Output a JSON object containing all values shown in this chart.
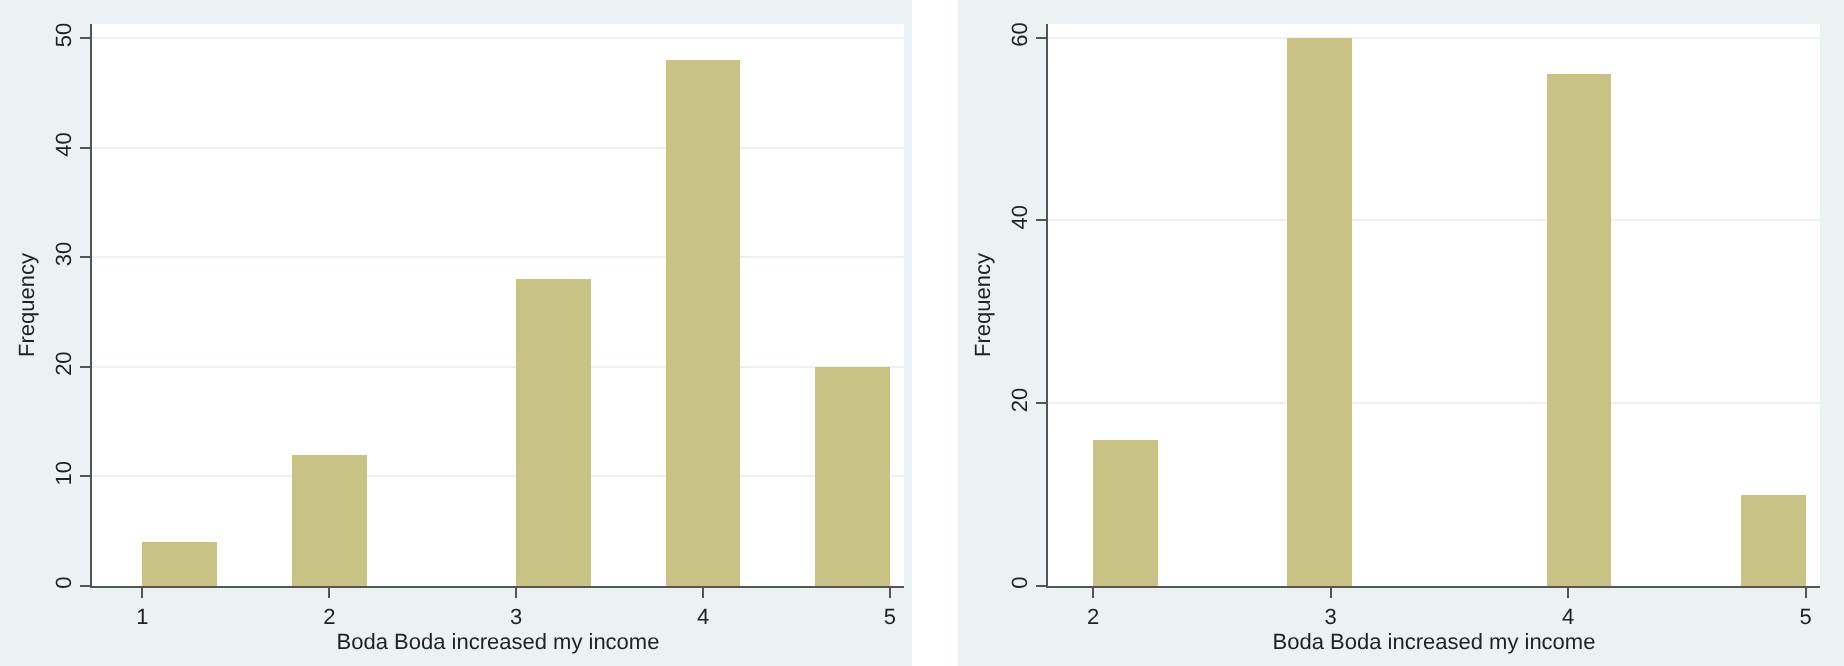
{
  "chart_data": [
    {
      "type": "histogram",
      "xlabel": "Boda Boda increased my income",
      "ylabel": "Frequency",
      "color": "#c9c285",
      "bins": [
        1,
        1.4,
        1.8,
        2.2,
        2.6,
        3.0,
        3.4,
        3.8,
        4.2,
        4.6,
        5.0
      ],
      "values": [
        4,
        0,
        12,
        0,
        0,
        28,
        0,
        48,
        0,
        20
      ],
      "xlim": [
        0.73,
        5.075
      ],
      "xticks": [
        1,
        2,
        3,
        4,
        5
      ],
      "ylim": [
        0,
        51.3
      ],
      "yticks": [
        0,
        10,
        20,
        30,
        40,
        50
      ],
      "grid": "y"
    },
    {
      "type": "histogram",
      "xlabel": "Boda Boda increased my income",
      "ylabel": "Frequency",
      "color": "#c9c285",
      "bins": [
        2,
        2.273,
        2.545,
        2.818,
        3.091,
        3.364,
        3.636,
        3.909,
        4.182,
        4.455,
        4.727,
        5
      ],
      "values": [
        16,
        0,
        0,
        60,
        0,
        0,
        0,
        56,
        0,
        0,
        10
      ],
      "xlim": [
        1.81,
        5.06
      ],
      "xticks": [
        2,
        3,
        4,
        5
      ],
      "ylim": [
        0,
        61.5
      ],
      "yticks": [
        0,
        20,
        40,
        60
      ],
      "grid": "y"
    }
  ]
}
